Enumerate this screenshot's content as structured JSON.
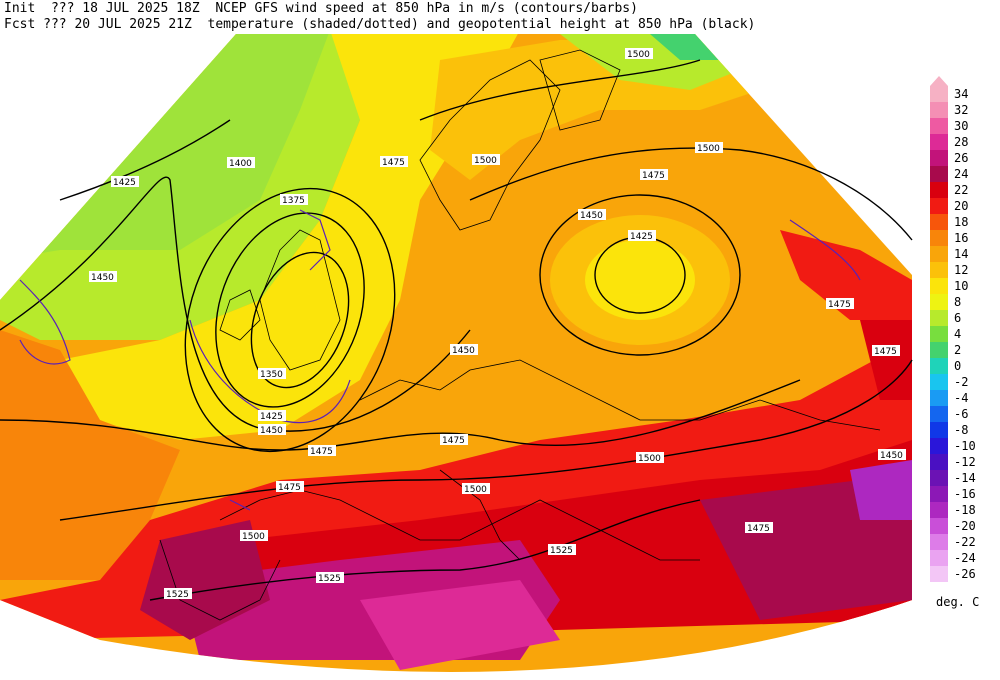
{
  "header": {
    "line1": "Init  ??? 18 JUL 2025 18Z  NCEP GFS wind speed at 850 hPa in m/s (contours/barbs)",
    "line2": "Fcst ??? 20 JUL 2025 21Z  temperature (shaded/dotted) and geopotential height at 850 hPa (black)"
  },
  "colorbar": {
    "unit": "deg. C",
    "levels": [
      {
        "label": "34",
        "color": "#f6b1c4"
      },
      {
        "label": "32",
        "color": "#f48fb4"
      },
      {
        "label": "30",
        "color": "#ee5aa2"
      },
      {
        "label": "28",
        "color": "#dd2a96"
      },
      {
        "label": "26",
        "color": "#c2137a"
      },
      {
        "label": "24",
        "color": "#a80a4c"
      },
      {
        "label": "22",
        "color": "#d9000f"
      },
      {
        "label": "20",
        "color": "#f11b13"
      },
      {
        "label": "18",
        "color": "#f7560b"
      },
      {
        "label": "16",
        "color": "#f8850a"
      },
      {
        "label": "14",
        "color": "#f9a50a"
      },
      {
        "label": "12",
        "color": "#fbc10a"
      },
      {
        "label": "10",
        "color": "#fbe40b"
      },
      {
        "label": "8",
        "color": "#eef312"
      },
      {
        "label": "6",
        "color": "#b7ea2c"
      },
      {
        "label": "4",
        "color": "#78de3e"
      },
      {
        "label": "2",
        "color": "#44d26e"
      },
      {
        "label": "0",
        "color": "#1fd3b9"
      },
      {
        "label": "-2",
        "color": "#19c5ef"
      },
      {
        "label": "-4",
        "color": "#1a9bf3"
      },
      {
        "label": "-6",
        "color": "#1466ef"
      },
      {
        "label": "-8",
        "color": "#1038e7"
      },
      {
        "label": "-10",
        "color": "#2a16d9"
      },
      {
        "label": "-12",
        "color": "#4a10c2"
      },
      {
        "label": "-14",
        "color": "#6b12b4"
      },
      {
        "label": "-16",
        "color": "#8c18b6"
      },
      {
        "label": "-18",
        "color": "#ad28c0"
      },
      {
        "label": "-20",
        "color": "#c94fd8"
      },
      {
        "label": "-22",
        "color": "#dd7ce8"
      },
      {
        "label": "-24",
        "color": "#eaa3f1"
      },
      {
        "label": "-26",
        "color": "#f3c6f6"
      }
    ]
  },
  "map": {
    "height_labels": [
      "1375",
      "1400",
      "1425",
      "1450",
      "1475",
      "1500",
      "1525"
    ],
    "lows": [
      {
        "label": "1350",
        "note": "low west of British Isles"
      },
      {
        "label": "1425",
        "note": "low over western Russia"
      }
    ]
  }
}
